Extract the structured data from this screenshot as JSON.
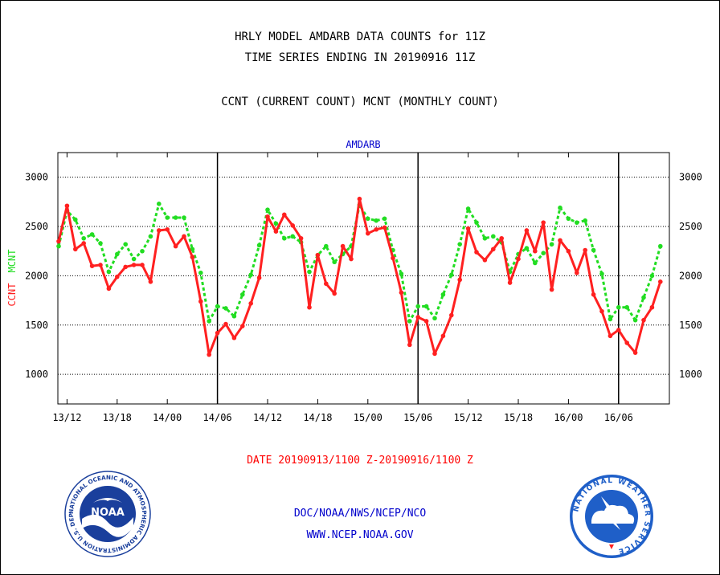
{
  "header": {
    "title_line1": "HRLY MODEL AMDARB DATA COUNTS for 11Z",
    "title_line2": "TIME SERIES ENDING IN 20190916 11Z",
    "subtitle": "CCNT (CURRENT COUNT) MCNT (MONTHLY COUNT)"
  },
  "footer": {
    "date_range": "DATE 20190913/1100 Z-20190916/1100 Z",
    "org_line": "DOC/NOAA/NWS/NCEP/NCO",
    "url_line": "WWW.NCEP.NOAA.GOV"
  },
  "logos": {
    "noaa_center_text": "NOAA",
    "noaa_ring_text": "NATIONAL OCEANIC AND ATMOSPHERIC ADMINISTRATION  U.S. DEPARTMENT OF COMMERCE",
    "nws_ring_text": "NATIONAL WEATHER SERVICE"
  },
  "colors": {
    "ccnt": "#ff2020",
    "mcnt": "#22dd22",
    "panel_title": "#0000cc",
    "noaa_blue": "#1a3f9c",
    "nws_blue": "#1f5fc8"
  },
  "chart_data": {
    "type": "line",
    "panel_title": "AMDARB",
    "ylabel_ccnt": "CCNT",
    "ylabel_mcnt": "MCNT",
    "ylim": [
      700,
      3250
    ],
    "yticks": [
      1000,
      1500,
      2000,
      2500,
      3000
    ],
    "xticks": [
      "13/12",
      "13/18",
      "14/00",
      "14/06",
      "14/12",
      "14/18",
      "15/00",
      "15/06",
      "15/12",
      "15/18",
      "16/00",
      "16/06"
    ],
    "x_hours_start": "13/11",
    "day_boundaries": [
      "14/06",
      "15/06",
      "16/06"
    ],
    "grid": "dotted horizontal",
    "series": [
      {
        "name": "CCNT",
        "style": "solid",
        "values": [
          2350,
          2710,
          2270,
          2330,
          2100,
          2110,
          1870,
          1990,
          2090,
          2110,
          2110,
          1940,
          2460,
          2470,
          2300,
          2400,
          2190,
          1740,
          1200,
          1420,
          1510,
          1370,
          1490,
          1720,
          1980,
          2600,
          2450,
          2620,
          2510,
          2380,
          1680,
          2210,
          1920,
          1820,
          2300,
          2170,
          2780,
          2430,
          2470,
          2490,
          2180,
          1830,
          1300,
          1580,
          1540,
          1210,
          1390,
          1600,
          1960,
          2480,
          2240,
          2160,
          2270,
          2380,
          1930,
          2170,
          2460,
          2250,
          2540,
          1860,
          2360,
          2250,
          2030,
          2260,
          1810,
          1640,
          1390,
          1450,
          1320,
          1220,
          1550,
          1680,
          1940
        ]
      },
      {
        "name": "MCNT",
        "style": "dotted",
        "values": [
          2300,
          2660,
          2570,
          2380,
          2420,
          2330,
          2040,
          2220,
          2320,
          2170,
          2250,
          2400,
          2730,
          2590,
          2590,
          2590,
          2270,
          2030,
          1540,
          1690,
          1670,
          1590,
          1810,
          2010,
          2310,
          2670,
          2530,
          2380,
          2400,
          2340,
          2040,
          2210,
          2300,
          2140,
          2220,
          2300,
          2720,
          2580,
          2560,
          2580,
          2260,
          2020,
          1540,
          1690,
          1690,
          1570,
          1810,
          2010,
          2320,
          2680,
          2540,
          2380,
          2400,
          2340,
          2040,
          2220,
          2280,
          2130,
          2230,
          2320,
          2690,
          2580,
          2540,
          2560,
          2260,
          2020,
          1560,
          1680,
          1680,
          1550,
          1780,
          2000,
          2300
        ]
      }
    ]
  }
}
